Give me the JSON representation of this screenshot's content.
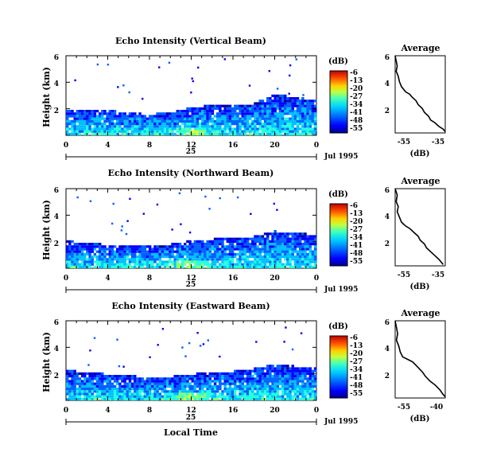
{
  "shared": {
    "y_axis_label": "Height (km)",
    "x_axis_label": "Local Time",
    "date_label": "Jul 1995",
    "day_label": "25",
    "colorbar_unit": "(dB)",
    "profile_title": "Average",
    "profile_xlabel": "(dB)",
    "colorbar_ticks": [
      "-6",
      "-13",
      "-20",
      "-27",
      "-34",
      "-41",
      "-48",
      "-55"
    ],
    "colormap": [
      "#00008f",
      "#0000ff",
      "#0060ff",
      "#00bfff",
      "#20ffdf",
      "#7fff7f",
      "#dfff20",
      "#ffbf00",
      "#ff6000",
      "#df0000",
      "#8f0000"
    ]
  },
  "panels": [
    {
      "title": "Echo Intensity (Vertical Beam)",
      "x_ticks": [
        "0",
        "4",
        "8",
        "12",
        "16",
        "20",
        "0"
      ],
      "y_ticks": [
        "6",
        "4",
        "2"
      ],
      "profile_x_ticks": [
        "-55",
        "-35"
      ]
    },
    {
      "title": "Echo Intensity (Northward Beam)",
      "x_ticks": [
        "0",
        "4",
        "8",
        "12",
        "16",
        "20",
        "0"
      ],
      "y_ticks": [
        "6",
        "4",
        "2"
      ],
      "profile_x_ticks": [
        "-55",
        "-35"
      ]
    },
    {
      "title": "Echo Intensity (Eastward Beam)",
      "x_ticks": [
        "0",
        "4",
        "8",
        "12",
        "16",
        "20",
        "0"
      ],
      "y_ticks": [
        "6",
        "4",
        "2"
      ],
      "profile_x_ticks": [
        "-55",
        "-40"
      ]
    }
  ],
  "chart_data": [
    {
      "type": "heatmap",
      "title": "Echo Intensity (Vertical Beam)",
      "xlabel": "",
      "ylabel": "Height (km)",
      "xlim": [
        0,
        24
      ],
      "ylim": [
        0,
        6
      ],
      "colorbar_range": [
        -55,
        -6
      ],
      "echo_top_km": [
        [
          0,
          1.9
        ],
        [
          2,
          1.8
        ],
        [
          4,
          1.8
        ],
        [
          6,
          1.6
        ],
        [
          8,
          1.5
        ],
        [
          10,
          1.6
        ],
        [
          12,
          2.0
        ],
        [
          14,
          2.2
        ],
        [
          16,
          2.1
        ],
        [
          18,
          2.3
        ],
        [
          20,
          3.0
        ],
        [
          22,
          2.8
        ],
        [
          24,
          2.6
        ]
      ]
    },
    {
      "type": "line",
      "title": "Average",
      "xlabel": "(dB)",
      "ylabel": "",
      "xlim": [
        -57,
        -33
      ],
      "ylim": [
        0,
        6
      ],
      "x": [
        -57,
        -56.5,
        -56,
        -56.5,
        -55.5,
        -55,
        -54,
        -52,
        -50,
        -49,
        -47,
        -46,
        -44,
        -43,
        -41,
        -40,
        -38,
        -36,
        -34,
        -33
      ],
      "y": [
        6.0,
        5.6,
        5.2,
        4.8,
        4.4,
        4.0,
        3.6,
        3.2,
        3.0,
        2.8,
        2.5,
        2.2,
        1.9,
        1.6,
        1.3,
        1.0,
        0.8,
        0.5,
        0.3,
        0.1
      ]
    },
    {
      "type": "heatmap",
      "title": "Echo Intensity (Northward Beam)",
      "xlabel": "",
      "ylabel": "Height (km)",
      "xlim": [
        0,
        24
      ],
      "ylim": [
        0,
        6
      ],
      "colorbar_range": [
        -55,
        -6
      ],
      "echo_top_km": [
        [
          0,
          2.0
        ],
        [
          2,
          1.8
        ],
        [
          4,
          1.7
        ],
        [
          6,
          1.7
        ],
        [
          8,
          1.6
        ],
        [
          10,
          1.7
        ],
        [
          12,
          2.0
        ],
        [
          14,
          2.1
        ],
        [
          16,
          2.2
        ],
        [
          18,
          2.3
        ],
        [
          20,
          2.7
        ],
        [
          22,
          2.6
        ],
        [
          24,
          2.4
        ]
      ]
    },
    {
      "type": "line",
      "title": "Average",
      "xlabel": "(dB)",
      "ylabel": "",
      "xlim": [
        -57,
        -33
      ],
      "ylim": [
        0,
        6
      ],
      "x": [
        -57,
        -56,
        -56.5,
        -55.5,
        -56,
        -55,
        -54,
        -52,
        -50,
        -48,
        -46,
        -45,
        -43,
        -42,
        -40,
        -38,
        -36,
        -35,
        -34
      ],
      "y": [
        6.0,
        5.5,
        5.0,
        4.6,
        4.2,
        3.8,
        3.4,
        3.1,
        2.9,
        2.6,
        2.3,
        2.0,
        1.7,
        1.4,
        1.1,
        0.8,
        0.5,
        0.3,
        0.1
      ]
    },
    {
      "type": "heatmap",
      "title": "Echo Intensity (Eastward Beam)",
      "xlabel": "Local Time",
      "ylabel": "Height (km)",
      "xlim": [
        0,
        24
      ],
      "ylim": [
        0,
        6
      ],
      "colorbar_range": [
        -55,
        -6
      ],
      "echo_top_km": [
        [
          0,
          2.2
        ],
        [
          2,
          2.0
        ],
        [
          4,
          1.9
        ],
        [
          6,
          1.8
        ],
        [
          8,
          1.6
        ],
        [
          10,
          1.7
        ],
        [
          12,
          1.9
        ],
        [
          14,
          2.0
        ],
        [
          16,
          2.1
        ],
        [
          18,
          2.3
        ],
        [
          20,
          2.6
        ],
        [
          22,
          2.5
        ],
        [
          24,
          2.3
        ]
      ]
    },
    {
      "type": "line",
      "title": "Average",
      "xlabel": "(dB)",
      "ylabel": "",
      "xlim": [
        -57,
        -37
      ],
      "ylim": [
        0,
        6
      ],
      "x": [
        -57,
        -56.5,
        -56,
        -56.5,
        -55.5,
        -55,
        -54,
        -52,
        -50,
        -48,
        -46,
        -45,
        -43,
        -41,
        -39,
        -38,
        -37
      ],
      "y": [
        6.0,
        5.5,
        5.0,
        4.5,
        4.0,
        3.6,
        3.2,
        3.0,
        2.8,
        2.4,
        2.0,
        1.7,
        1.3,
        1.0,
        0.6,
        0.3,
        0.1
      ]
    }
  ]
}
